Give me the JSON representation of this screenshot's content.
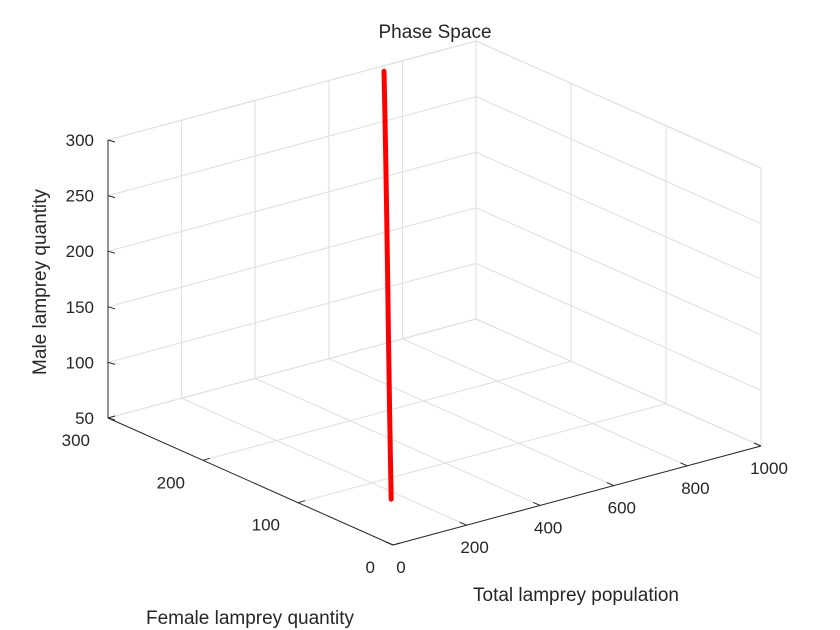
{
  "chart_data": {
    "type": "line",
    "title": "Phase Space",
    "xlabel": "Total lamprey population",
    "ylabel": "Female lamprey quantity",
    "zlabel": "Male lamprey quantity",
    "xlim": [
      0,
      1000
    ],
    "ylim": [
      0,
      300
    ],
    "zlim": [
      50,
      300
    ],
    "xticks": [
      0,
      200,
      400,
      600,
      800,
      1000
    ],
    "yticks": [
      0,
      100,
      200,
      300
    ],
    "zticks": [
      50,
      100,
      150,
      200,
      250,
      300
    ],
    "grid": true,
    "series": [
      {
        "color": "#ff0000",
        "points": [
          {
            "x": 150,
            "y": 60,
            "z": 55
          },
          {
            "x": 225,
            "y": 90,
            "z": 80
          },
          {
            "x": 300,
            "y": 120,
            "z": 110
          },
          {
            "x": 375,
            "y": 150,
            "z": 145
          },
          {
            "x": 450,
            "y": 180,
            "z": 185
          },
          {
            "x": 525,
            "y": 210,
            "z": 220
          },
          {
            "x": 600,
            "y": 240,
            "z": 250
          },
          {
            "x": 675,
            "y": 270,
            "z": 275
          },
          {
            "x": 750,
            "y": 300,
            "z": 295
          }
        ]
      }
    ]
  }
}
